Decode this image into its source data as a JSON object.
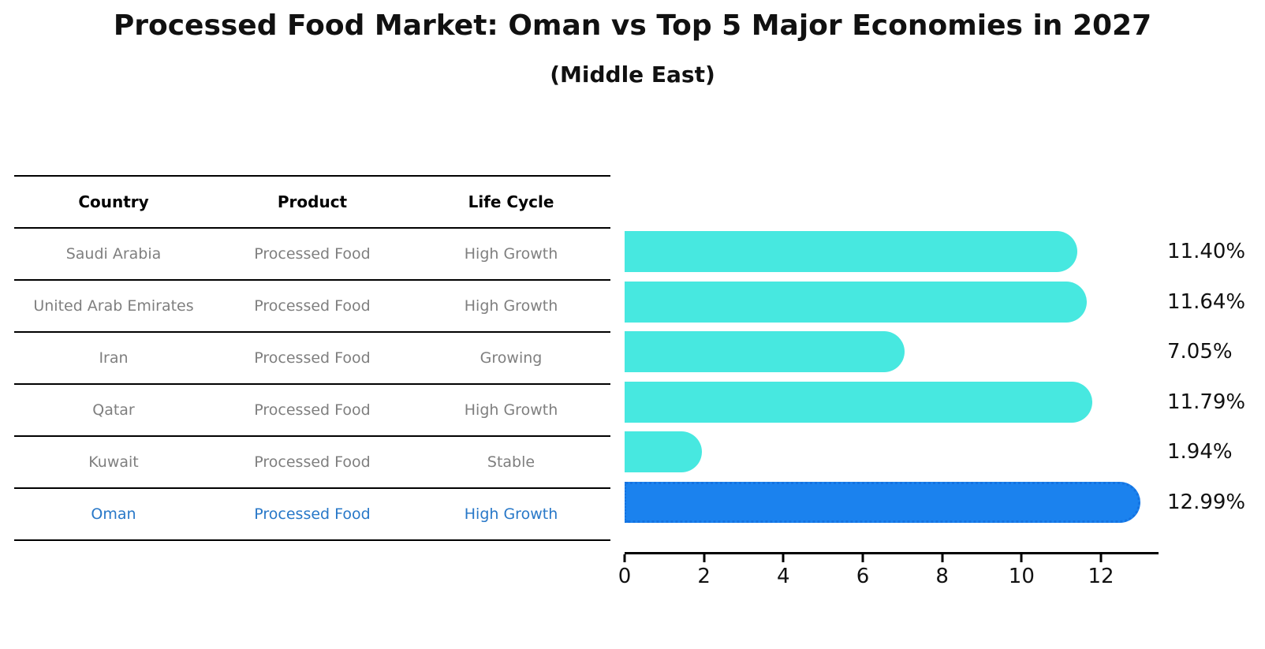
{
  "title": "Processed Food Market: Oman vs Top 5 Major Economies in 2027",
  "subtitle": "(Middle East)",
  "table": {
    "headers": [
      "Country",
      "Product",
      "Life Cycle"
    ],
    "rows": [
      {
        "country": "Saudi Arabia",
        "product": "Processed Food",
        "life_cycle": "High Growth",
        "highlighted": false
      },
      {
        "country": "United Arab Emirates",
        "product": "Processed Food",
        "life_cycle": "High Growth",
        "highlighted": false
      },
      {
        "country": "Iran",
        "product": "Processed Food",
        "life_cycle": "Growing",
        "highlighted": false
      },
      {
        "country": "Qatar",
        "product": "Processed Food",
        "life_cycle": "High Growth",
        "highlighted": false
      },
      {
        "country": "Kuwait",
        "product": "Processed Food",
        "life_cycle": "Stable",
        "highlighted": false
      },
      {
        "country": "Oman",
        "product": "Processed Food",
        "life_cycle": "High Growth",
        "highlighted": true
      }
    ]
  },
  "chart_data": {
    "type": "bar",
    "orientation": "horizontal",
    "categories": [
      "Saudi Arabia",
      "United Arab Emirates",
      "Iran",
      "Qatar",
      "Kuwait",
      "Oman"
    ],
    "values": [
      11.4,
      11.64,
      7.05,
      11.79,
      1.94,
      12.99
    ],
    "value_labels": [
      "11.40%",
      "11.64%",
      "7.05%",
      "11.79%",
      "1.94%",
      "12.99%"
    ],
    "highlight_index": 5,
    "xlim": [
      0,
      13.45
    ],
    "xticks": [
      0,
      2,
      4,
      6,
      8,
      10,
      12
    ],
    "grid": false,
    "legend": false,
    "colors": {
      "bar": "#47E8E0",
      "highlight_bar": "#1B82EE",
      "highlight_border": "#1472E0",
      "highlight_text": "#2878C8",
      "table_text": "#7f7f7f",
      "axis": "#000000"
    }
  }
}
